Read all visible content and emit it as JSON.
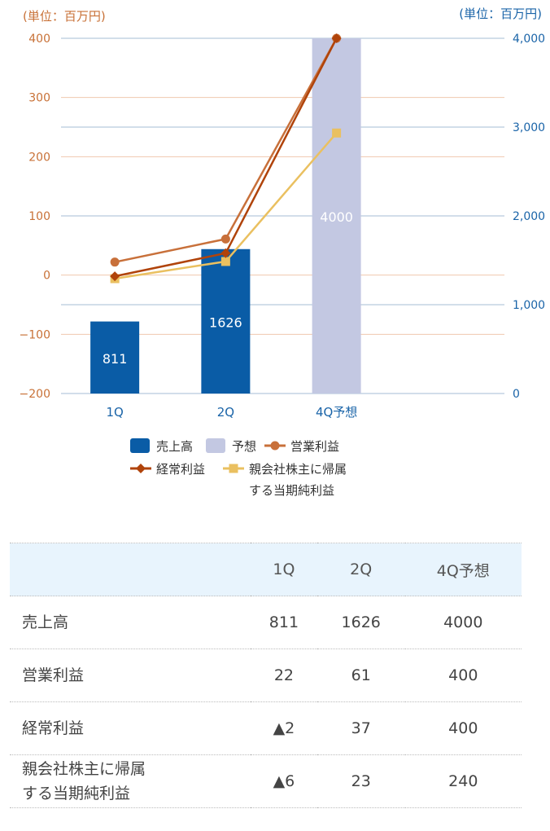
{
  "chart_data": {
    "type": "bar+line",
    "categories": [
      "1Q",
      "2Q",
      "4Q予想"
    ],
    "left_axis": {
      "label": "(単位：百万円)",
      "range": [
        -200,
        400
      ],
      "ticks": [
        400,
        300,
        200,
        100,
        0,
        -100,
        -200
      ],
      "tick_labels": [
        "400",
        "300",
        "200",
        "100",
        "0",
        "−100",
        "−200"
      ],
      "color": "#c87137"
    },
    "right_axis": {
      "label": "(単位：百万円)",
      "range": [
        0,
        4000
      ],
      "ticks": [
        4000,
        3000,
        2000,
        1000,
        0
      ],
      "tick_labels": [
        "4,000",
        "3,000",
        "2,000",
        "1,000",
        "0"
      ],
      "color": "#1a64a8"
    },
    "bars": [
      {
        "name": "売上高",
        "category": "1Q",
        "value": 811,
        "label": "811",
        "color": "#0a5ca6"
      },
      {
        "name": "売上高",
        "category": "2Q",
        "value": 1626,
        "label": "1626",
        "color": "#0a5ca6"
      },
      {
        "name": "予想",
        "category": "4Q予想",
        "value": 4000,
        "label": "4000",
        "color": "#c3c8e2"
      }
    ],
    "series": [
      {
        "name": "営業利益",
        "values": [
          22,
          61,
          400
        ],
        "color": "#c8703a",
        "marker": "circle"
      },
      {
        "name": "経常利益",
        "values": [
          -2,
          37,
          400
        ],
        "color": "#b0430a",
        "marker": "diamond"
      },
      {
        "name": "親会社株主に帰属する当期純利益",
        "values": [
          -6,
          23,
          240
        ],
        "color": "#eac060",
        "marker": "square"
      }
    ],
    "legend": {
      "position": "bottom",
      "items": [
        {
          "label": "売上高",
          "color": "#0a5ca6",
          "type": "box"
        },
        {
          "label": "予想",
          "color": "#c3c8e2",
          "type": "box"
        },
        {
          "label": "営業利益",
          "color": "#c8703a",
          "type": "circle"
        },
        {
          "label": "経常利益",
          "color": "#b0430a",
          "type": "diamond"
        },
        {
          "label": "親会社株主に帰属",
          "label2": "する当期純利益",
          "color": "#eac060",
          "type": "square"
        }
      ]
    },
    "grid": true
  },
  "table": {
    "headers": [
      "",
      "1Q",
      "2Q",
      "4Q予想"
    ],
    "rows": [
      {
        "label": "売上高",
        "values": [
          "811",
          "1626",
          "4000"
        ]
      },
      {
        "label": "営業利益",
        "values": [
          "22",
          "61",
          "400"
        ]
      },
      {
        "label": "経常利益",
        "values": [
          "▲2",
          "37",
          "400"
        ]
      },
      {
        "label": "親会社株主に帰属",
        "label2": "する当期純利益",
        "values": [
          "▲6",
          "23",
          "240"
        ]
      }
    ]
  }
}
